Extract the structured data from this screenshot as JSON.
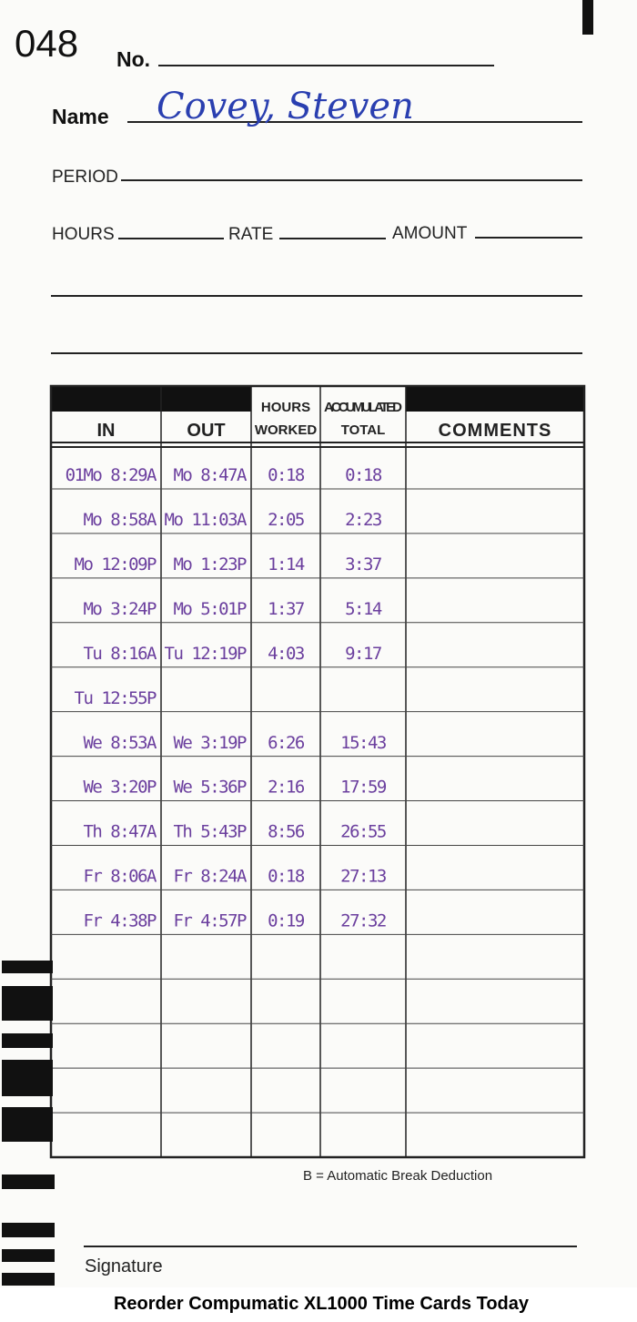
{
  "card": {
    "number": "048",
    "fields": {
      "no_label": "No.",
      "name_label": "Name",
      "name_value": "Covey, Steven",
      "period_label": "PERIOD",
      "hours_label": "HOURS",
      "rate_label": "RATE",
      "amount_label": "AMOUNT"
    },
    "table": {
      "headers": [
        "IN",
        "OUT",
        [
          "HOURS",
          "WORKED"
        ],
        [
          "ACCUMULATED",
          "TOTAL"
        ],
        "COMMENTS"
      ],
      "rows": [
        [
          "01Mo 8:29A",
          "Mo 8:47A",
          "0:18",
          "0:18"
        ],
        [
          "Mo 8:58A",
          "Mo 11:03A",
          "2:05",
          "2:23"
        ],
        [
          "Mo 12:09P",
          "Mo 1:23P",
          "1:14",
          "3:37"
        ],
        [
          "Mo 3:24P",
          "Mo 5:01P",
          "1:37",
          "5:14"
        ],
        [
          "Tu 8:16A",
          "Tu 12:19P",
          "4:03",
          "9:17"
        ],
        [
          "Tu 12:55P",
          null,
          null,
          null
        ],
        [
          "We 8:53A",
          "We 3:19P",
          "6:26",
          "15:43"
        ],
        [
          "We 3:20P",
          "We 5:36P",
          "2:16",
          "17:59"
        ],
        [
          "Th 8:47A",
          "Th 5:43P",
          "8:56",
          "26:55"
        ],
        [
          "Fr 8:06A",
          "Fr 8:24A",
          "0:18",
          "27:13"
        ],
        [
          "Fr 4:38P",
          "Fr 4:57P",
          "0:19",
          "27:32"
        ]
      ]
    },
    "break_note": "B = Automatic Break Deduction",
    "signature_label": "Signature",
    "footer": "Reorder Compumatic XL1000 Time Cards Today"
  }
}
